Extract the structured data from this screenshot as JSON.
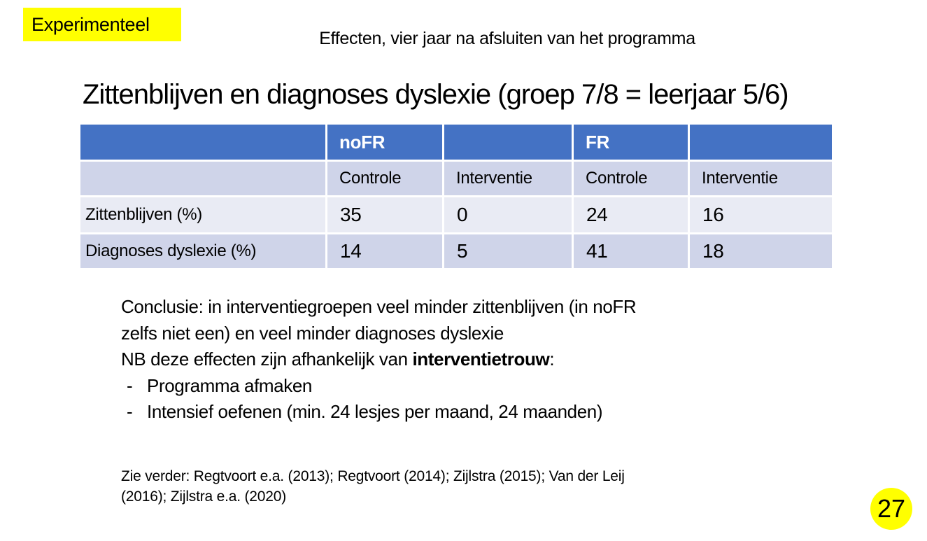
{
  "badge": {
    "label": "Experimenteel"
  },
  "header": {
    "subtitle": "Effecten, vier jaar na afsluiten van het programma"
  },
  "slide": {
    "title": "Zittenblijven en diagnoses dyslexie (groep 7/8 = leerjaar 5/6)",
    "page_number": "27"
  },
  "table": {
    "group_headers": [
      "",
      "noFR",
      "",
      "FR",
      ""
    ],
    "column_headers": [
      "",
      "Controle",
      "Interventie",
      "Controle",
      "Interventie"
    ],
    "rows": [
      {
        "label": "Zittenblijven (%)",
        "values": [
          "35",
          "0",
          "24",
          "16"
        ]
      },
      {
        "label": "Diagnoses dyslexie (%)",
        "values": [
          "14",
          "5",
          "41",
          "18"
        ]
      }
    ]
  },
  "conclusion": {
    "line1": "Conclusie: in interventiegroepen veel minder zittenblijven (in noFR",
    "line2": "zelfs niet een) en veel minder diagnoses dyslexie",
    "line3_prefix": "NB deze effecten zijn afhankelijk van ",
    "line3_bold": "interventietrouw",
    "line3_suffix": ":",
    "bullet_marker": "-",
    "bullets": [
      "Programma afmaken",
      "Intensief oefenen (min. 24 lesjes per maand, 24 maanden)"
    ]
  },
  "references": {
    "line1": "Zie verder: Regtvoort e.a. (2013); Regtvoort (2014); Zijlstra (2015); Van der Leij",
    "line2": "(2016); Zijlstra e.a. (2020)"
  },
  "colors": {
    "highlight_yellow": "#ffff00",
    "table_header_blue": "#4472c4",
    "band_dark": "#cfd4e9",
    "band_light": "#e9ebf4",
    "text_black": "#000000"
  }
}
